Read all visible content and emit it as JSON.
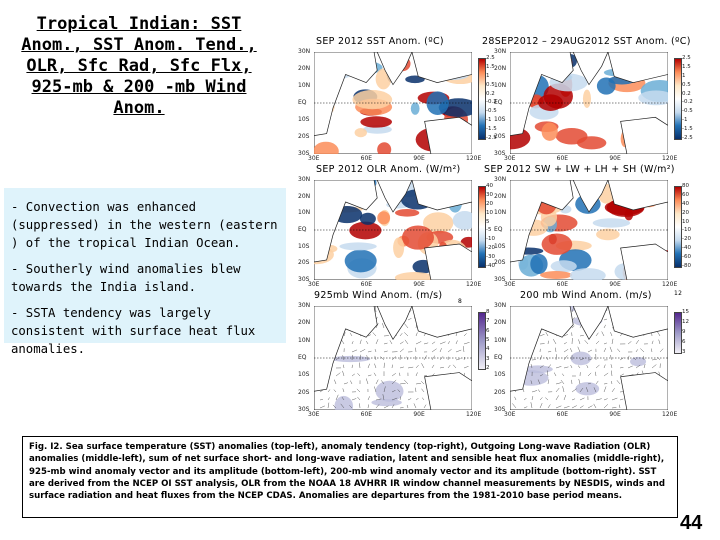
{
  "slide": {
    "title": "Tropical Indian: SST Anom., SST Anom. Tend., OLR, Sfc Rad, Sfc Flx, 925-mb & 200 -mb Wind Anom.",
    "bullets": [
      "- Convection was enhanced (suppressed) in the western (eastern ) of the tropical Indian Ocean.",
      "- Southerly  wind anomalies blew towards  the India island.",
      "- SSTA tendency was largely consistent with surface heat flux anomalies."
    ],
    "caption": "Fig. I2. Sea surface temperature (SST) anomalies (top-left), anomaly tendency (top-right), Outgoing Long-wave Radiation (OLR) anomalies (middle-left), sum of net surface short- and long-wave radiation, latent and sensible heat flux anomalies (middle-right), 925-mb wind anomaly vector and its amplitude (bottom-left), 200-mb wind anomaly vector and its amplitude  (bottom-right). SST are derived from the NCEP OI SST analysis, OLR from the NOAA 18 AVHRR IR window channel measurements by NESDIS, winds and surface radiation and heat fluxes from the NCEP CDAS. Anomalies are  departures from the 1981-2010 base period means.",
    "page_number": "44"
  },
  "panels": {
    "sst": {
      "title": "SEP 2012 SST Anom. (ºC)",
      "lats": [
        "30N",
        "20N",
        "10N",
        "EQ",
        "10S",
        "20S",
        "30S"
      ],
      "lons": [
        "30E",
        "60E",
        "90E",
        "120E"
      ],
      "cbar": [
        "2.5",
        "1.5",
        "1",
        "0.5",
        "0.2",
        "-0.2",
        "-0.5",
        "-1",
        "-1.5",
        "-2.5"
      ]
    },
    "sst_tend": {
      "title": "28SEP2012 – 29AUG2012 SST Anom. (ºC)",
      "lats": [
        "30N",
        "20N",
        "10N",
        "EQ",
        "10S",
        "20S",
        "30S"
      ],
      "lons": [
        "30E",
        "60E",
        "90E",
        "120E"
      ],
      "cbar": [
        "2.5",
        "1.5",
        "1",
        "0.5",
        "0.2",
        "-0.2",
        "-0.5",
        "-1",
        "-1.5",
        "-2.5"
      ]
    },
    "olr": {
      "title": "SEP 2012 OLR Anom. (W/m²)",
      "lats": [
        "30N",
        "20N",
        "10N",
        "EQ",
        "10S",
        "20S",
        "30S"
      ],
      "lons": [
        "30E",
        "60E",
        "90E",
        "120E"
      ],
      "cbar": [
        "40",
        "30",
        "20",
        "10",
        "5",
        "-5",
        "-10",
        "-20",
        "-30",
        "-40"
      ]
    },
    "flux": {
      "title": "SEP 2012 SW + LW + LH + SH (W/m²)",
      "lats": [
        "30N",
        "20N",
        "10N",
        "EQ",
        "10S",
        "20S",
        "30S"
      ],
      "lons": [
        "30E",
        "60E",
        "90E",
        "120E"
      ],
      "cbar": [
        "80",
        "60",
        "40",
        "20",
        "10",
        "-10",
        "-20",
        "-40",
        "-60",
        "-80"
      ]
    },
    "w925": {
      "title": "925mb Wind Anom. (m/s)",
      "ref": "8",
      "lats": [
        "30N",
        "20N",
        "10N",
        "EQ",
        "10S",
        "20S",
        "30S"
      ],
      "lons": [
        "30E",
        "60E",
        "90E",
        "120E"
      ],
      "cbar": [
        "8",
        "7",
        "6",
        "5",
        "4",
        "3",
        "2"
      ]
    },
    "w200": {
      "title": "200 mb Wind Anom. (m/s)",
      "ref": "12",
      "lats": [
        "30N",
        "20N",
        "10N",
        "EQ",
        "10S",
        "20S",
        "30S"
      ],
      "lons": [
        "30E",
        "60E",
        "90E",
        "120E"
      ],
      "cbar": [
        "15",
        "12",
        "9",
        "6",
        "3"
      ]
    }
  },
  "colors": {
    "bullet_bg": "#dff3fb",
    "warm": "#d7301f",
    "cool": "#2c7bb6",
    "land": "#ffffff"
  }
}
